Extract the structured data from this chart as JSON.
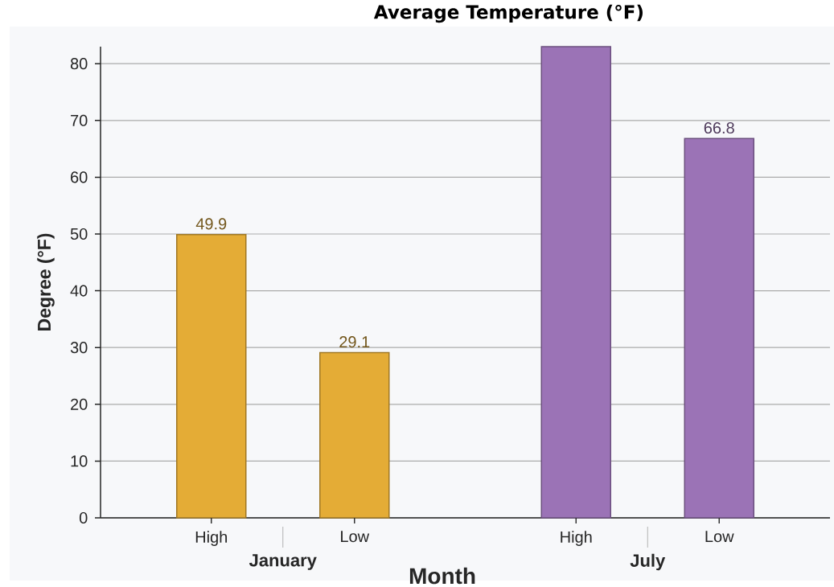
{
  "chart_data": {
    "type": "bar",
    "title": "Average Temperature (°F)",
    "xlabel": "Month",
    "ylabel": "Degree (°F)",
    "categories": [
      "January",
      "July"
    ],
    "series": [
      {
        "name": "High",
        "colors": [
          "#e4ac36",
          "#9b73b6"
        ],
        "values": [
          49.9,
          83
        ],
        "value_labels": [
          "49.9",
          null
        ]
      },
      {
        "name": "Low",
        "colors": [
          "#e4ac36",
          "#9b73b6"
        ],
        "values": [
          29.1,
          66.8
        ],
        "value_labels": [
          "29.1",
          "66.8"
        ]
      }
    ],
    "ylim": [
      0,
      83
    ],
    "yticks": [
      0,
      10,
      20,
      30,
      40,
      50,
      60,
      70,
      80
    ],
    "grid": "y"
  }
}
